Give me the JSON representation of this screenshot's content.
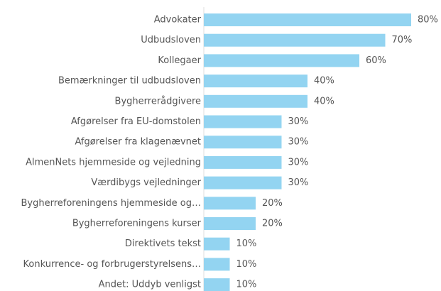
{
  "chart_data": {
    "type": "bar",
    "orientation": "horizontal",
    "categories": [
      "Advokater",
      "Udbudsloven",
      "Kollegaer",
      "Bemærkninger til udbudsloven",
      "Bygherrerådgivere",
      "Afgørelser fra EU-domstolen",
      "Afgørelser fra klagenævnet",
      "AlmenNets hjemmeside og vejledning",
      "Værdibygs vejledninger",
      "Bygherreforeningens hjemmeside og…",
      "Bygherreforeningens kurser",
      "Direktivets tekst",
      "Konkurrence- og forbrugerstyrelsens…",
      "Andet: Uddyb venligst"
    ],
    "values": [
      80,
      70,
      60,
      40,
      40,
      30,
      30,
      30,
      30,
      20,
      20,
      10,
      10,
      10
    ],
    "value_labels": [
      "80%",
      "70%",
      "60%",
      "40%",
      "40%",
      "30%",
      "30%",
      "30%",
      "30%",
      "20%",
      "20%",
      "10%",
      "10%",
      "10%"
    ],
    "color": "#93d4f1"
  }
}
